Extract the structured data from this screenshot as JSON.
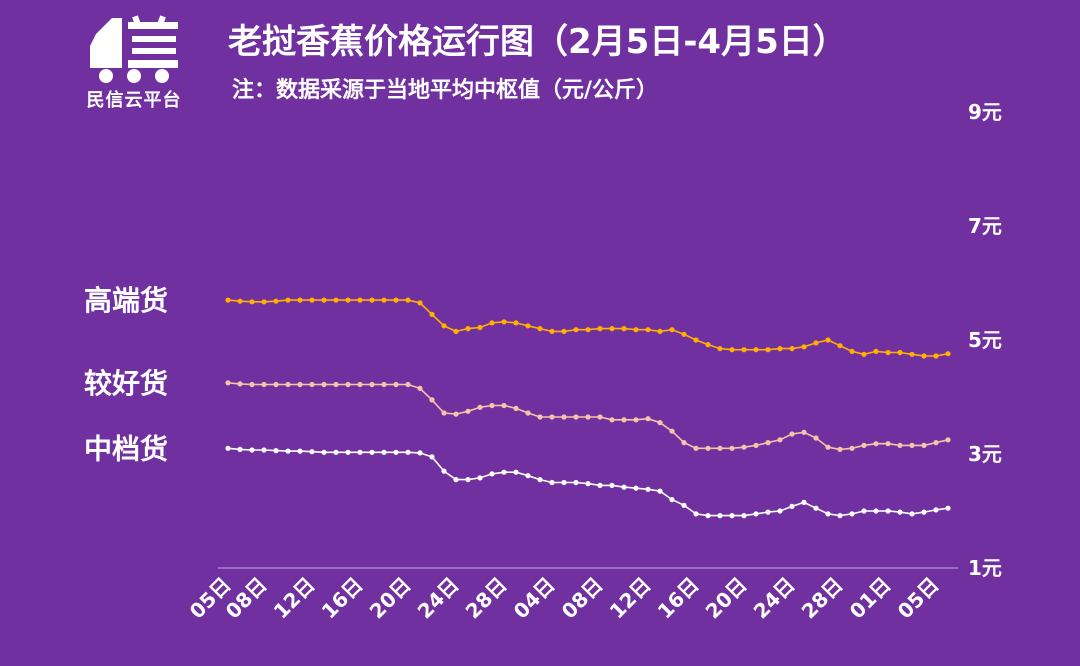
{
  "logo": {
    "name": "truck-logo-icon",
    "text": "民信云平台"
  },
  "title": "老挝香蕉价格运行图（2月5日-4月5日）",
  "subtitle": "注：数据采源于当地平均中枢值（元/公斤）",
  "colors": {
    "background": "#7030a0",
    "high": "#ffb000",
    "good": "#f8c4a8",
    "mid": "#ffffff",
    "axis": "#c8a8e0"
  },
  "chart_data": {
    "type": "line",
    "ylim": [
      1,
      9
    ],
    "yticks": [
      {
        "value": 9,
        "label": "9元"
      },
      {
        "value": 7,
        "label": "7元"
      },
      {
        "value": 5,
        "label": "5元"
      },
      {
        "value": 3,
        "label": "3元"
      },
      {
        "value": 1,
        "label": "1元"
      }
    ],
    "x": [
      "02-05",
      "02-06",
      "02-07",
      "02-08",
      "02-09",
      "02-10",
      "02-11",
      "02-12",
      "02-13",
      "02-14",
      "02-15",
      "02-16",
      "02-17",
      "02-18",
      "02-19",
      "02-20",
      "02-21",
      "02-22",
      "02-23",
      "02-24",
      "02-25",
      "02-26",
      "02-27",
      "02-28",
      "03-01",
      "03-02",
      "03-03",
      "03-04",
      "03-05",
      "03-06",
      "03-07",
      "03-08",
      "03-09",
      "03-10",
      "03-11",
      "03-12",
      "03-13",
      "03-14",
      "03-15",
      "03-16",
      "03-17",
      "03-18",
      "03-19",
      "03-20",
      "03-21",
      "03-22",
      "03-23",
      "03-24",
      "03-25",
      "03-26",
      "03-27",
      "03-28",
      "03-29",
      "03-30",
      "03-31",
      "04-01",
      "04-02",
      "04-03",
      "04-04",
      "04-05",
      "04-06"
    ],
    "xtick_labels": [
      "05日",
      "08日",
      "12日",
      "16日",
      "20日",
      "24日",
      "28日",
      "04日",
      "08日",
      "12日",
      "16日",
      "20日",
      "24日",
      "28日",
      "01日",
      "05日"
    ],
    "xtick_dates": [
      "02-05",
      "02-08",
      "02-12",
      "02-16",
      "02-20",
      "02-24",
      "02-28",
      "03-04",
      "03-08",
      "03-12",
      "03-16",
      "03-20",
      "03-24",
      "03-28",
      "04-01",
      "04-05"
    ],
    "series": [
      {
        "name": "高端货",
        "color": "#ffb000",
        "values": [
          5.7,
          5.68,
          5.67,
          5.67,
          5.68,
          5.7,
          5.7,
          5.7,
          5.7,
          5.7,
          5.7,
          5.7,
          5.7,
          5.7,
          5.7,
          5.7,
          5.65,
          5.45,
          5.25,
          5.15,
          5.2,
          5.22,
          5.3,
          5.32,
          5.3,
          5.25,
          5.2,
          5.15,
          5.15,
          5.18,
          5.18,
          5.2,
          5.2,
          5.2,
          5.18,
          5.18,
          5.15,
          5.18,
          5.1,
          5.0,
          4.92,
          4.85,
          4.83,
          4.83,
          4.83,
          4.83,
          4.85,
          4.85,
          4.88,
          4.95,
          5.0,
          4.9,
          4.8,
          4.75,
          4.8,
          4.78,
          4.78,
          4.75,
          4.72,
          4.72,
          4.76
        ]
      },
      {
        "name": "较好货",
        "color": "#f8c4a8",
        "values": [
          4.25,
          4.23,
          4.22,
          4.22,
          4.22,
          4.22,
          4.22,
          4.22,
          4.22,
          4.22,
          4.22,
          4.22,
          4.22,
          4.22,
          4.22,
          4.22,
          4.15,
          3.95,
          3.72,
          3.7,
          3.75,
          3.82,
          3.85,
          3.85,
          3.8,
          3.72,
          3.65,
          3.65,
          3.65,
          3.65,
          3.65,
          3.65,
          3.6,
          3.6,
          3.6,
          3.62,
          3.55,
          3.4,
          3.2,
          3.1,
          3.1,
          3.1,
          3.1,
          3.12,
          3.15,
          3.2,
          3.25,
          3.35,
          3.38,
          3.28,
          3.12,
          3.08,
          3.1,
          3.15,
          3.18,
          3.18,
          3.15,
          3.15,
          3.15,
          3.2,
          3.25
        ]
      },
      {
        "name": "中档货",
        "color": "#ffffff",
        "values": [
          3.1,
          3.08,
          3.07,
          3.07,
          3.06,
          3.05,
          3.05,
          3.04,
          3.03,
          3.03,
          3.03,
          3.03,
          3.03,
          3.03,
          3.03,
          3.03,
          3.02,
          2.95,
          2.7,
          2.55,
          2.55,
          2.58,
          2.65,
          2.68,
          2.68,
          2.62,
          2.55,
          2.5,
          2.5,
          2.5,
          2.48,
          2.45,
          2.45,
          2.42,
          2.4,
          2.38,
          2.35,
          2.2,
          2.1,
          1.95,
          1.92,
          1.92,
          1.92,
          1.92,
          1.95,
          1.98,
          2.0,
          2.08,
          2.15,
          2.05,
          1.95,
          1.92,
          1.95,
          2.0,
          2.0,
          2.0,
          1.98,
          1.95,
          1.98,
          2.02,
          2.05
        ]
      }
    ]
  }
}
